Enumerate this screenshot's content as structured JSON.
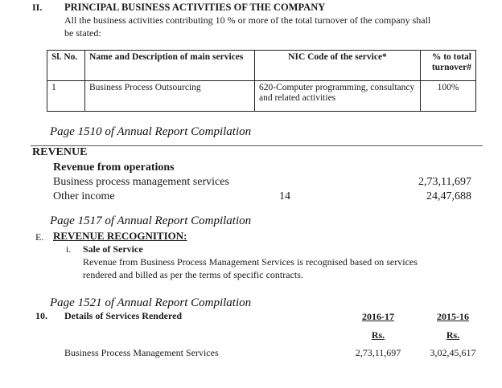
{
  "activities": {
    "number": "II.",
    "title": "PRINCIPAL BUSINESS ACTIVITIES OF THE COMPANY",
    "note_lines": [
      "All the business activities contributing 10 % or more of the total turnover of the company shall",
      "be stated:"
    ],
    "table": {
      "header": [
        "Sl. No.",
        "Name and Description of main services",
        "NIC Code of the service*",
        "% to total turnover#"
      ],
      "rows": [
        [
          "1",
          "Business Process Outsourcing",
          "620-Computer programming, consultancy and related activities",
          "100%"
        ]
      ]
    },
    "page_label": "Page 1510 of Annual Report Compilation"
  },
  "revenue": {
    "title": "REVENUE",
    "subtitle": "Revenue from operations",
    "rows": [
      {
        "label": "Business process management services",
        "amount": "2,73,11,697"
      },
      {
        "label": "Other income",
        "note": "14",
        "amount": "24,47,688"
      }
    ],
    "page_label": "Page 1517 of Annual Report Compilation"
  },
  "recognition": {
    "number": "E.",
    "title": "REVENUE RECOGNITION:",
    "item_number": "i.",
    "item_title": "Sale of Service",
    "text_lines": [
      "Revenue from Business Process Management Services is recognised based on services",
      "rendered and billed as per the terms of specific contracts."
    ],
    "page_label": "Page 1521 of Annual Report Compilation"
  },
  "services": {
    "number": "10.",
    "title": "Details of Services Rendered",
    "years": [
      "2016-17",
      "2015-16"
    ],
    "unit": "Rs.",
    "rows": [
      {
        "label": "Business Process Management Services",
        "amounts": [
          "2,73,11,697",
          "3,02,45,617"
        ]
      }
    ]
  }
}
